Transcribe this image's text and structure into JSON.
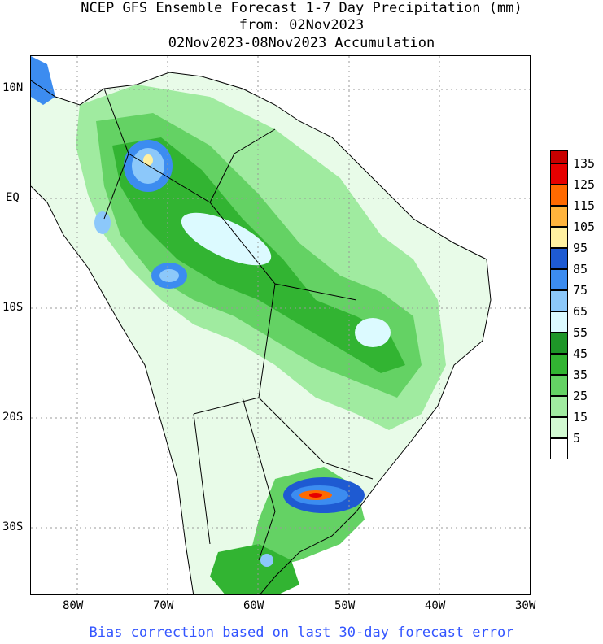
{
  "title": {
    "line1": "NCEP GFS Ensemble Forecast 1-7 Day Precipitation (mm)",
    "line2": "from: 02Nov2023",
    "line3": "02Nov2023-08Nov2023 Accumulation"
  },
  "lat_labels": [
    "10N",
    "EQ",
    "10S",
    "20S",
    "30S"
  ],
  "lon_labels": [
    "80W",
    "70W",
    "60W",
    "50W",
    "40W",
    "30W"
  ],
  "legend": {
    "labels": [
      "135",
      "125",
      "115",
      "105",
      "95",
      "85",
      "75",
      "65",
      "55",
      "45",
      "35",
      "25",
      "15",
      "5"
    ],
    "colors": [
      "#e60000",
      "#ff6a00",
      "#ffb43c",
      "#fff0a0",
      "#1e5ad2",
      "#3c8cf0",
      "#8cc8fa",
      "#dcfaff",
      "#1e9628",
      "#32b432",
      "#64d264",
      "#a0eba0",
      "#d2fad2",
      "#ffffff"
    ]
  },
  "footer": "Bias correction based on last 30-day forecast error"
}
